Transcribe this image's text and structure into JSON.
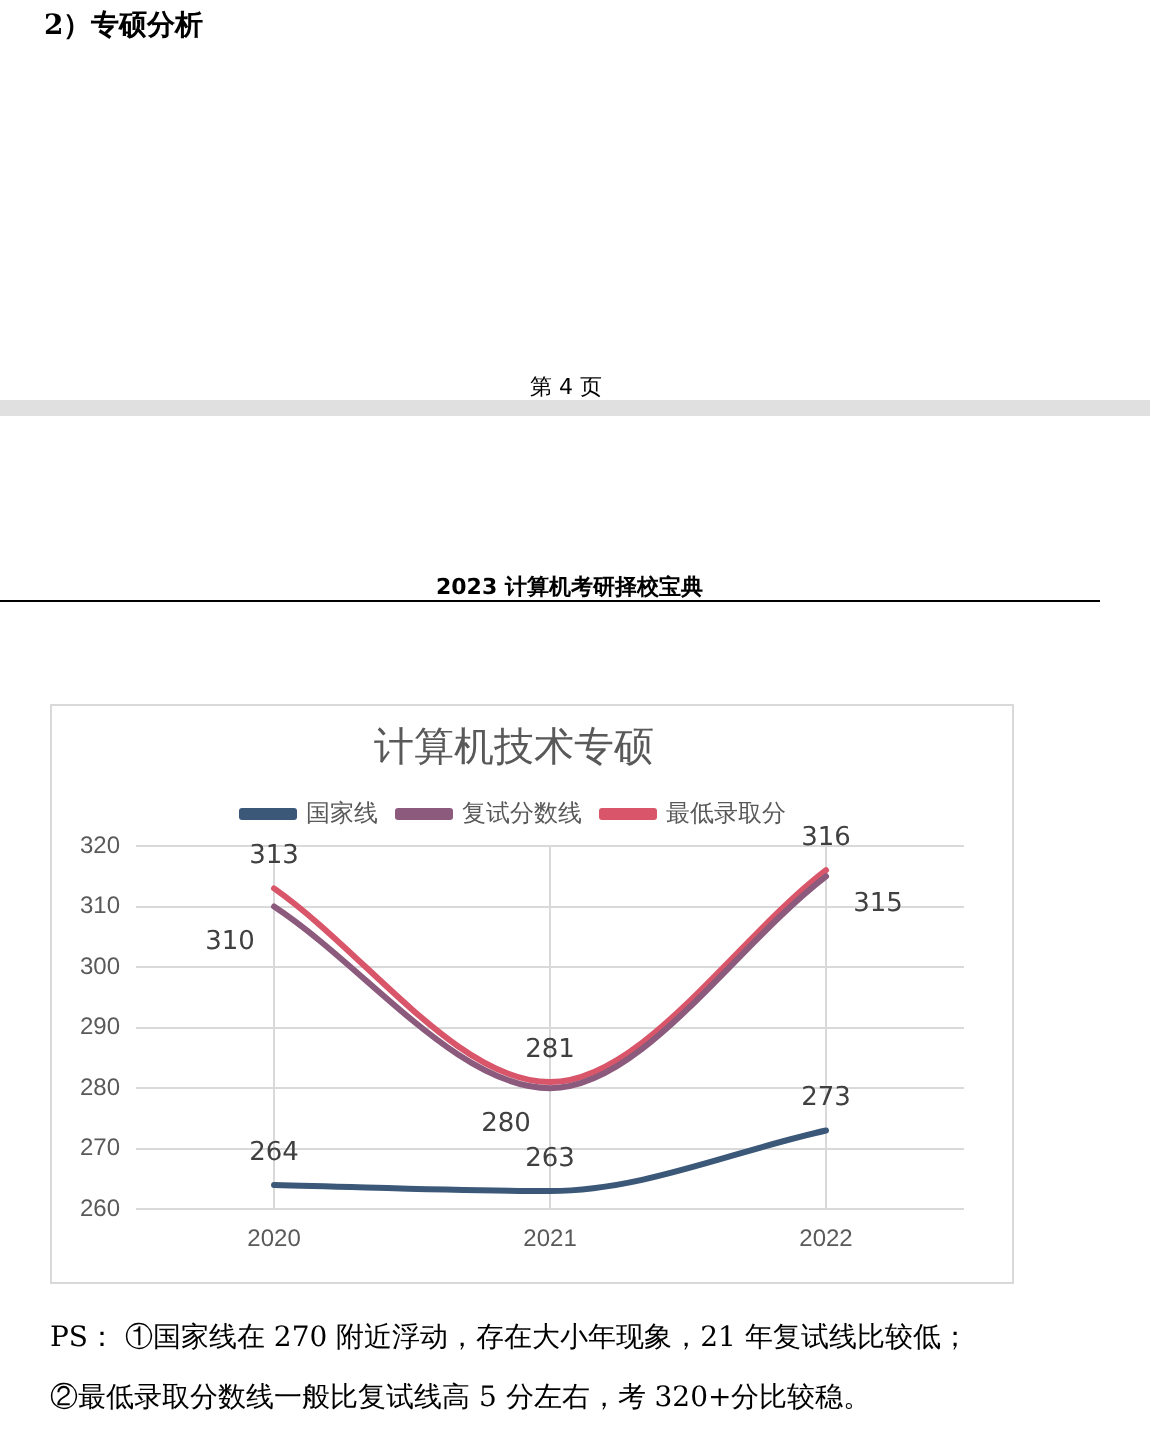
{
  "chart_data": {
    "type": "line",
    "title": "计算机技术专硕",
    "categories": [
      "2020",
      "2021",
      "2022"
    ],
    "series": [
      {
        "name": "国家线",
        "color": "#3b5878",
        "values": [
          264,
          263,
          273
        ]
      },
      {
        "name": "复试分数线",
        "color": "#8c5a7c",
        "values": [
          310,
          280,
          315
        ]
      },
      {
        "name": "最低录取分",
        "color": "#d9566a",
        "values": [
          313,
          281,
          316
        ]
      }
    ],
    "ylim": [
      260,
      320
    ],
    "yticks": [
      260,
      270,
      280,
      290,
      300,
      310,
      320
    ],
    "grid": true,
    "legend": "top",
    "marker": "none",
    "line_style": "solid",
    "data_labels": true,
    "annotations": [
      "2）专硕分析",
      "第 4 页",
      "2023 计算机考研择校宝典",
      "PS： ①国家线在 270 附近浮动，存在大小年现象，21 年复试线比较低；",
      "②最低录取分数线一般比复试线高 5 分左右，考 320+分比较稳。"
    ]
  }
}
